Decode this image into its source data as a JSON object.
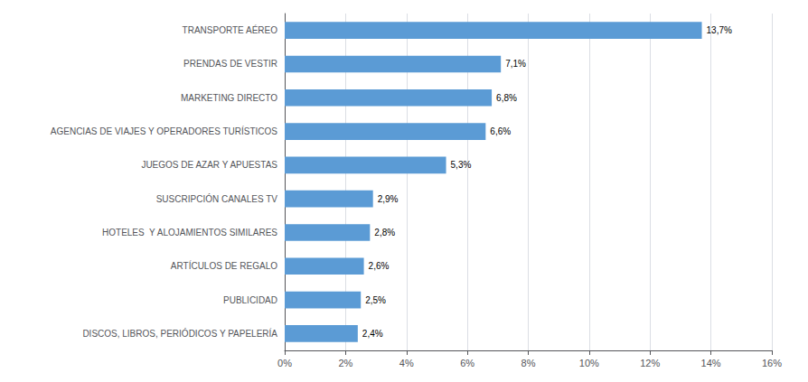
{
  "chart_data": {
    "type": "bar",
    "orientation": "horizontal",
    "categories": [
      "DISCOS, LIBROS, PERIÓDICOS Y PAPELERÍA",
      "PUBLICIDAD",
      "ARTÍCULOS DE REGALO",
      "HOTELES  Y ALOJAMIENTOS SIMILARES",
      "SUSCRIPCIÓN CANALES TV",
      "JUEGOS DE AZAR Y APUESTAS",
      "AGENCIAS DE VIAJES Y OPERADORES TURÍSTICOS",
      "MARKETING DIRECTO",
      "PRENDAS DE VESTIR",
      "TRANSPORTE AÉREO"
    ],
    "values": [
      2.4,
      2.5,
      2.6,
      2.8,
      2.9,
      5.3,
      6.6,
      6.8,
      7.1,
      13.7
    ],
    "value_labels": [
      "2,4%",
      "2,5%",
      "2,6%",
      "2,8%",
      "2,9%",
      "5,3%",
      "6,6%",
      "6,8%",
      "7,1%",
      "13,7%"
    ],
    "data_labels": true,
    "color": "#5b9bd5",
    "xlim": [
      0,
      16
    ],
    "xticks": [
      {
        "value": 0,
        "label": "0%"
      },
      {
        "value": 2,
        "label": "2%"
      },
      {
        "value": 4,
        "label": "4%"
      },
      {
        "value": 6,
        "label": "6%"
      },
      {
        "value": 8,
        "label": "8%"
      },
      {
        "value": 10,
        "label": "10%"
      },
      {
        "value": 12,
        "label": "12%"
      },
      {
        "value": 14,
        "label": "14%"
      },
      {
        "value": 16,
        "label": "16%"
      }
    ],
    "grid": true
  }
}
